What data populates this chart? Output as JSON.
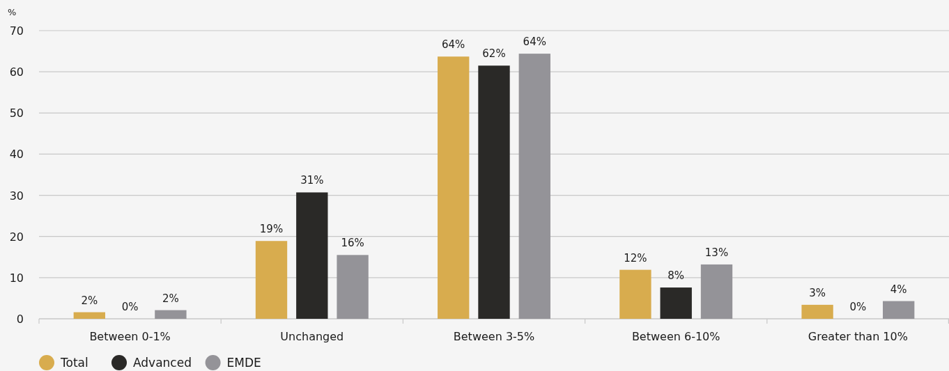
{
  "chart_data": {
    "type": "bar",
    "ylabel": "%",
    "categories": [
      "Between 0-1%",
      "Unchanged",
      "Between 3-5%",
      "Between 6-10%",
      "Greater than 10%"
    ],
    "series": [
      {
        "name": "Total",
        "color": "#d8ac4e",
        "values": [
          1.6,
          18.9,
          63.7,
          11.9,
          3.4
        ],
        "value_labels": [
          "2%",
          "19%",
          "64%",
          "12%",
          "3%"
        ]
      },
      {
        "name": "Advanced",
        "color": "#2a2927",
        "values": [
          0,
          30.7,
          61.5,
          7.6,
          0
        ],
        "value_labels": [
          "0%",
          "31%",
          "62%",
          "8%",
          "0%"
        ]
      },
      {
        "name": "EMDE",
        "color": "#949398",
        "values": [
          2.1,
          15.5,
          64.4,
          13.2,
          4.3
        ],
        "value_labels": [
          "2%",
          "16%",
          "64%",
          "13%",
          "4%"
        ]
      }
    ],
    "ylim": [
      0,
      70
    ],
    "yticks": [
      0,
      10,
      20,
      30,
      40,
      50,
      60,
      70
    ],
    "grid": "y",
    "legend": "bottom left"
  }
}
